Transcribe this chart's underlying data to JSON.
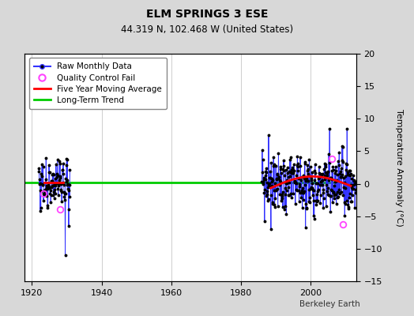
{
  "title": "ELM SPRINGS 3 ESE",
  "subtitle": "44.319 N, 102.468 W (United States)",
  "ylabel": "Temperature Anomaly (°C)",
  "credit": "Berkeley Earth",
  "xlim": [
    1918,
    2013
  ],
  "ylim": [
    -15,
    20
  ],
  "yticks": [
    -15,
    -10,
    -5,
    0,
    5,
    10,
    15,
    20
  ],
  "xticks": [
    1920,
    1940,
    1960,
    1980,
    2000
  ],
  "background_color": "#d8d8d8",
  "plot_bg_color": "#ffffff",
  "grid_color": "#bbbbbb",
  "line_color": "#3333ff",
  "marker_color": "#000000",
  "moving_avg_color": "#ff0000",
  "trend_color": "#00cc00",
  "qc_color": "#ff44ff",
  "legend_fontsize": 7.5,
  "title_fontsize": 10,
  "subtitle_fontsize": 8.5,
  "tick_fontsize": 8,
  "early_seed": 77,
  "modern_seed": 99
}
